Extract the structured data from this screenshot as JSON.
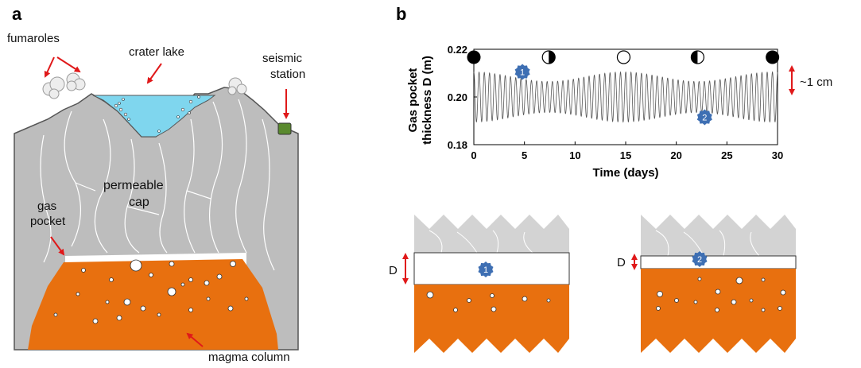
{
  "panels": {
    "a": "a",
    "b": "b"
  },
  "labels": {
    "fumaroles": "fumaroles",
    "crater_lake": "crater lake",
    "seismic_station_line1": "seismic",
    "seismic_station_line2": "station",
    "permeable_cap_line1": "permeable",
    "permeable_cap_line2": "cap",
    "gas_pocket_line1": "gas",
    "gas_pocket_line2": "pocket",
    "magma_column": "magma column",
    "amplitude": "~1 cm",
    "d_label": "D"
  },
  "markers": [
    "1",
    "2"
  ],
  "colors": {
    "rock": "#bdbdbd",
    "cap": "#d3d3d3",
    "lake": "#7fd6ee",
    "magma": "#e8700f",
    "gas": "#ffffff",
    "arrow": "#e0191a",
    "station": "#5a8a2e",
    "marker": "#3e6fb3"
  },
  "chart_data": {
    "type": "line",
    "xlabel": "Time (days)",
    "ylabel_line1": "Gas pocket",
    "ylabel_line2": "thickness D (m)",
    "xlim": [
      0,
      30
    ],
    "ylim": [
      0.18,
      0.22
    ],
    "xticks": [
      "0",
      "5",
      "10",
      "15",
      "20",
      "25",
      "30"
    ],
    "yticks": [
      "0.22",
      "0.20",
      "0.18"
    ],
    "series": [
      {
        "values_note": "",
        "mean": 0.2,
        "semidiurnal_period_days": 0.5175,
        "amplitude_max": 0.0105,
        "amplitude_min": 0.0065,
        "spring_neap_period_days": 14.77
      }
    ],
    "moon_phases": [
      {
        "day": 0,
        "phase": "new-moon"
      },
      {
        "day": 7.4,
        "phase": "first-quarter"
      },
      {
        "day": 14.8,
        "phase": "full-moon"
      },
      {
        "day": 22.1,
        "phase": "last-quarter"
      },
      {
        "day": 29.5,
        "phase": "new-moon"
      }
    ],
    "marker_points": [
      {
        "label": "1",
        "day": 4.8,
        "value": 0.2105
      },
      {
        "label": "2",
        "day": 22.8,
        "value": 0.1915
      }
    ]
  }
}
